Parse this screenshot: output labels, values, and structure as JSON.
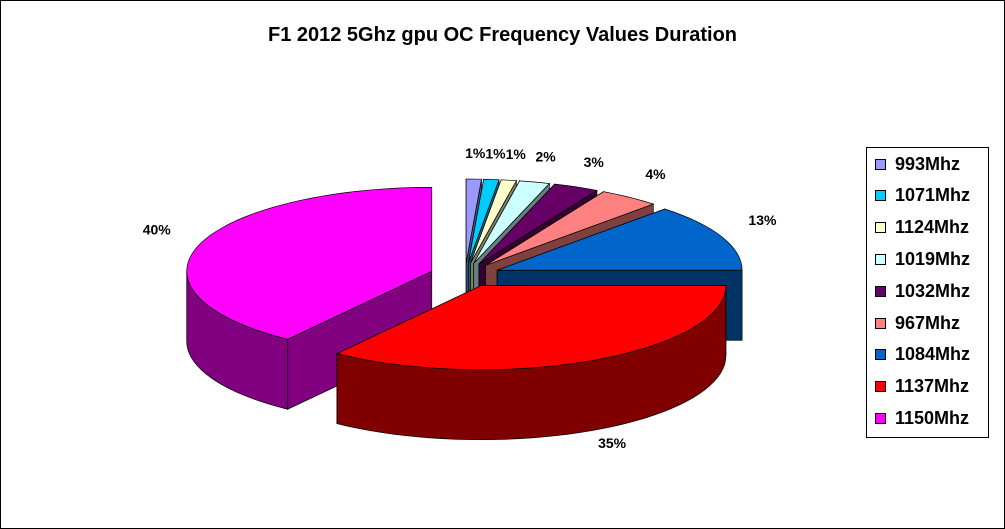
{
  "chart_data": {
    "type": "pie",
    "title": "F1 2012 5Ghz gpu OC Frequency Values Duration",
    "legend_position": "right",
    "slices": [
      {
        "name": "993Mhz",
        "value": 1,
        "label": "1%",
        "color": "#9999ff"
      },
      {
        "name": "1071Mhz",
        "value": 1,
        "label": "1%",
        "color": "#00ccff"
      },
      {
        "name": "1124Mhz",
        "value": 1,
        "label": "1%",
        "color": "#ffffcc"
      },
      {
        "name": "1019Mhz",
        "value": 2,
        "label": "2%",
        "color": "#ccffff"
      },
      {
        "name": "1032Mhz",
        "value": 3,
        "label": "3%",
        "color": "#660066"
      },
      {
        "name": "967Mhz",
        "value": 4,
        "label": "4%",
        "color": "#ff8080"
      },
      {
        "name": "1084Mhz",
        "value": 13,
        "label": "13%",
        "color": "#0066cc"
      },
      {
        "name": "1137Mhz",
        "value": 35,
        "label": "35%",
        "color": "#ff0000"
      },
      {
        "name": "1150Mhz",
        "value": 40,
        "label": "40%",
        "color": "#ff00ff"
      }
    ]
  }
}
